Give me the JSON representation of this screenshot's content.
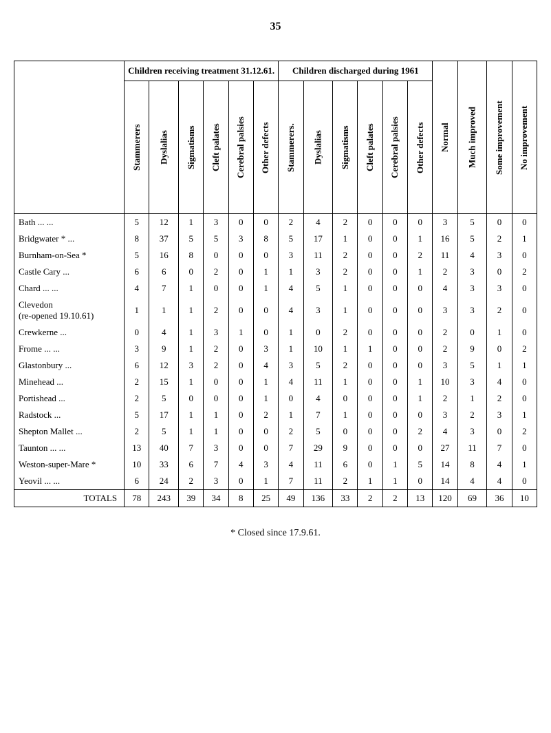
{
  "page_number": "35",
  "group_headers": {
    "receiving": "Children receiving treatment 31.12.61.",
    "discharged": "Children discharged during 1961"
  },
  "column_labels": {
    "stammerers1": "Stammerers",
    "dyslalias1": "Dyslalias",
    "sigmatisms1": "Sigmatisms",
    "cleft1": "Cleft palates",
    "cerebral1": "Cerebral palsies",
    "other1": "Other defects",
    "stammerers2": "Stammerers.",
    "dyslalias2": "Dyslalias",
    "sigmatisms2": "Sigmatisms",
    "cleft2": "Cleft palates",
    "cerebral2": "Cerebral palsies",
    "other2": "Other defects",
    "normal": "Normal",
    "much": "Much improved",
    "some": "Some improvement",
    "none": "No improvement"
  },
  "rows": [
    {
      "label": "Bath    ...    ...",
      "v": [
        "5",
        "12",
        "1",
        "3",
        "0",
        "0",
        "2",
        "4",
        "2",
        "0",
        "0",
        "0",
        "3",
        "5",
        "0",
        "0"
      ]
    },
    {
      "label": "Bridgwater *    ...",
      "v": [
        "8",
        "37",
        "5",
        "5",
        "3",
        "8",
        "5",
        "17",
        "1",
        "0",
        "0",
        "1",
        "16",
        "5",
        "2",
        "1"
      ]
    },
    {
      "label": "Burnham-on-Sea *",
      "v": [
        "5",
        "16",
        "8",
        "0",
        "0",
        "0",
        "3",
        "11",
        "2",
        "0",
        "0",
        "2",
        "11",
        "4",
        "3",
        "0"
      ]
    },
    {
      "label": "Castle Cary    ...",
      "v": [
        "6",
        "6",
        "0",
        "2",
        "0",
        "1",
        "1",
        "3",
        "2",
        "0",
        "0",
        "1",
        "2",
        "3",
        "0",
        "2"
      ]
    },
    {
      "label": "Chard    ...    ...",
      "v": [
        "4",
        "7",
        "1",
        "0",
        "0",
        "1",
        "4",
        "5",
        "1",
        "0",
        "0",
        "0",
        "4",
        "3",
        "3",
        "0"
      ]
    },
    {
      "label": "Clevedon\n(re-opened 19.10.61)",
      "v": [
        "1",
        "1",
        "1",
        "2",
        "0",
        "0",
        "4",
        "3",
        "1",
        "0",
        "0",
        "0",
        "3",
        "3",
        "2",
        "0"
      ]
    },
    {
      "label": "Crewkerne    ...",
      "v": [
        "0",
        "4",
        "1",
        "3",
        "1",
        "0",
        "1",
        "0",
        "2",
        "0",
        "0",
        "0",
        "2",
        "0",
        "1",
        "0"
      ]
    },
    {
      "label": "Frome    ...    ...",
      "v": [
        "3",
        "9",
        "1",
        "2",
        "0",
        "3",
        "1",
        "10",
        "1",
        "1",
        "0",
        "0",
        "2",
        "9",
        "0",
        "2"
      ]
    },
    {
      "label": "Glastonbury    ...",
      "v": [
        "6",
        "12",
        "3",
        "2",
        "0",
        "4",
        "3",
        "5",
        "2",
        "0",
        "0",
        "0",
        "3",
        "5",
        "1",
        "1"
      ]
    },
    {
      "label": "Minehead    ...",
      "v": [
        "2",
        "15",
        "1",
        "0",
        "0",
        "1",
        "4",
        "11",
        "1",
        "0",
        "0",
        "1",
        "10",
        "3",
        "4",
        "0"
      ]
    },
    {
      "label": "Portishead    ...",
      "v": [
        "2",
        "5",
        "0",
        "0",
        "0",
        "1",
        "0",
        "4",
        "0",
        "0",
        "0",
        "1",
        "2",
        "1",
        "2",
        "0"
      ]
    },
    {
      "label": "Radstock    ...",
      "v": [
        "5",
        "17",
        "1",
        "1",
        "0",
        "2",
        "1",
        "7",
        "1",
        "0",
        "0",
        "0",
        "3",
        "2",
        "3",
        "1"
      ]
    },
    {
      "label": "Shepton Mallet ...",
      "v": [
        "2",
        "5",
        "1",
        "1",
        "0",
        "0",
        "2",
        "5",
        "0",
        "0",
        "0",
        "2",
        "4",
        "3",
        "0",
        "2"
      ]
    },
    {
      "label": "Taunton ...    ...",
      "v": [
        "13",
        "40",
        "7",
        "3",
        "0",
        "0",
        "7",
        "29",
        "9",
        "0",
        "0",
        "0",
        "27",
        "11",
        "7",
        "0"
      ]
    },
    {
      "label": "Weston-super-Mare *",
      "v": [
        "10",
        "33",
        "6",
        "7",
        "4",
        "3",
        "4",
        "11",
        "6",
        "0",
        "1",
        "5",
        "14",
        "8",
        "4",
        "1"
      ]
    },
    {
      "label": "Yeovil    ...    ...",
      "v": [
        "6",
        "24",
        "2",
        "3",
        "0",
        "1",
        "7",
        "11",
        "2",
        "1",
        "1",
        "0",
        "14",
        "4",
        "4",
        "0"
      ]
    }
  ],
  "totals": {
    "label": "TOTALS",
    "v": [
      "78",
      "243",
      "39",
      "34",
      "8",
      "25",
      "49",
      "136",
      "33",
      "2",
      "2",
      "13",
      "120",
      "69",
      "36",
      "10"
    ]
  },
  "footnote": "*   Closed since 17.9.61."
}
